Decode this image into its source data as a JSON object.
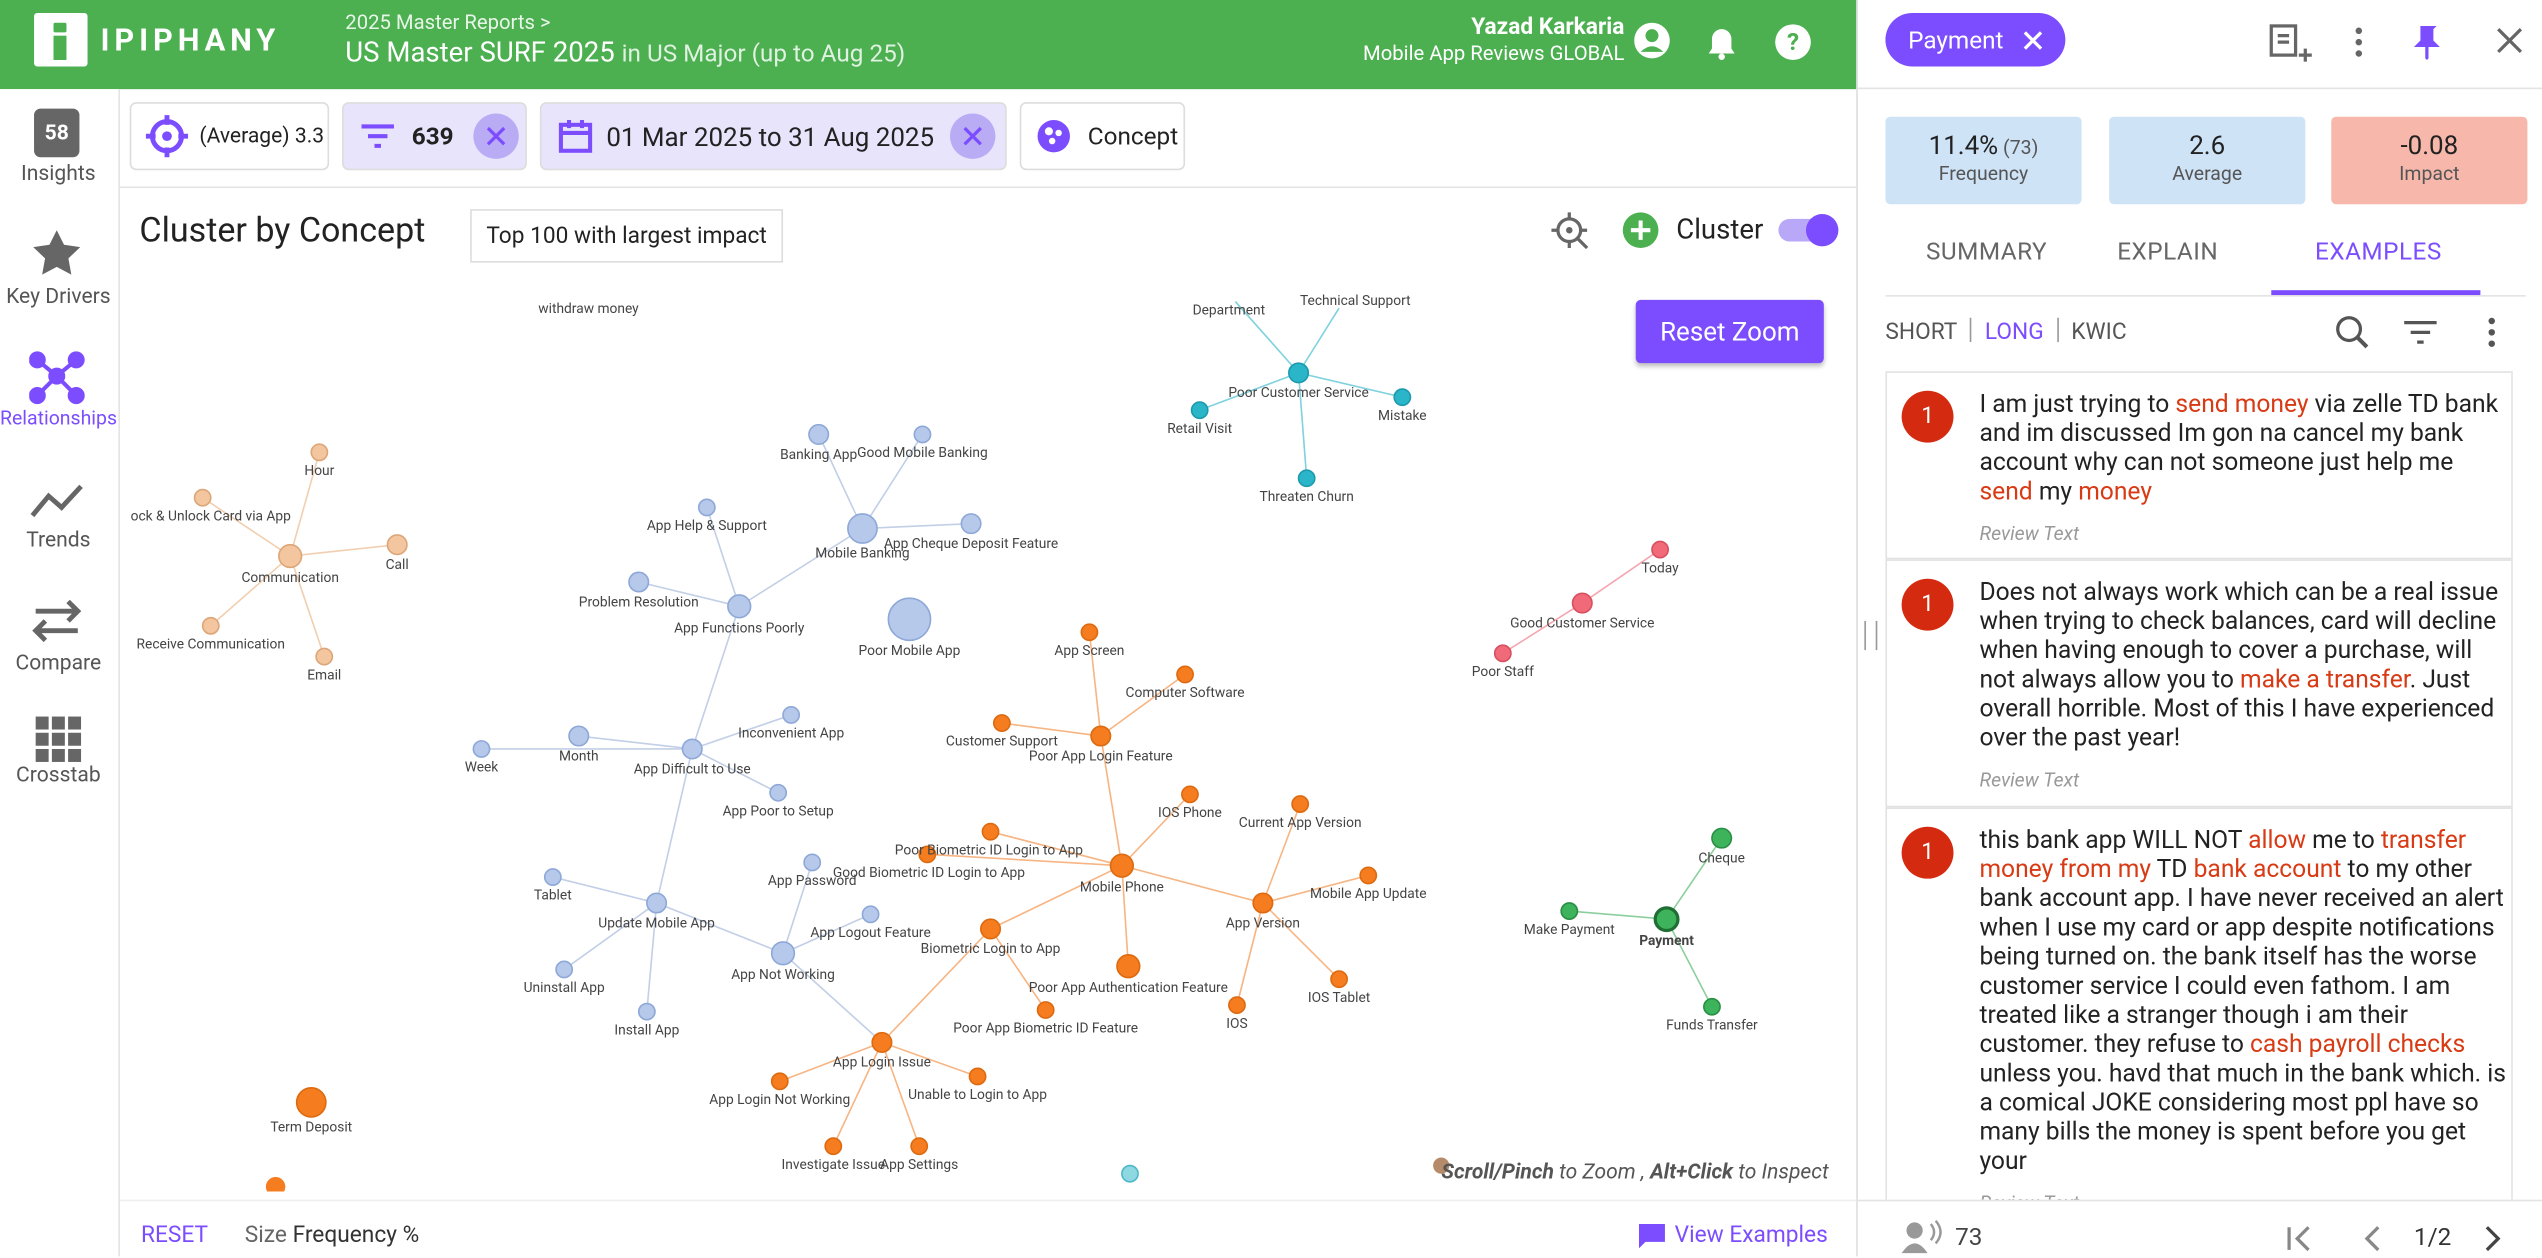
{
  "header": {
    "logo": "IPIPHANY",
    "breadcrumb": "2025 Master Reports  >",
    "title": "US Master SURF 2025",
    "scope": "in US Major (up to Aug 25)",
    "user": "Yazad Karkaria",
    "project": "Mobile App Reviews GLOBAL"
  },
  "sidebar": {
    "badge": "58",
    "items": [
      "Insights",
      "Key Drivers",
      "Relationships",
      "Trends",
      "Compare",
      "Crosstab"
    ],
    "active": 2
  },
  "filters": {
    "average": "(Average) 3.3",
    "count": "639",
    "dates": "01 Mar 2025 to 31 Aug 2025",
    "group": "Concept"
  },
  "panel": {
    "title": "Cluster by Concept",
    "selector": "Top 100 with largest impact",
    "cluster_label": "Cluster",
    "reset_zoom": "Reset Zoom",
    "hint": [
      {
        "text": "Scroll/Pinch",
        "bold": true
      },
      {
        "text": " to Zoom , ",
        "bold": false
      },
      {
        "text": "Alt+Click",
        "bold": true
      },
      {
        "text": " to Inspect",
        "bold": false
      }
    ],
    "reset": "RESET",
    "size_label": "Size",
    "size_value": "Frequency %",
    "view_examples": "View Examples"
  },
  "graph": {
    "nodes": [
      {
        "label": "withdraw money"
      },
      {
        "label": "Hour"
      },
      {
        "label": "ock & Unlock Card via App"
      },
      {
        "label": "Communication"
      },
      {
        "label": "Call"
      },
      {
        "label": "Receive Communication"
      },
      {
        "label": "Email"
      },
      {
        "label": "Banking App"
      },
      {
        "label": "Good Mobile Banking"
      },
      {
        "label": "App Help & Support"
      },
      {
        "label": "Mobile Banking"
      },
      {
        "label": "App Cheque Deposit Feature"
      },
      {
        "label": "Problem Resolution"
      },
      {
        "label": "App Functions Poorly"
      },
      {
        "label": "Poor Mobile App"
      },
      {
        "label": "Inconvenient App"
      },
      {
        "label": "Week"
      },
      {
        "label": "Month"
      },
      {
        "label": "App Difficult to Use"
      },
      {
        "label": "App Poor to Setup"
      },
      {
        "label": "App Password"
      },
      {
        "label": "Tablet"
      },
      {
        "label": "Update Mobile App"
      },
      {
        "label": "App Logout Feature"
      },
      {
        "label": "App Not Working"
      },
      {
        "label": "Uninstall App"
      },
      {
        "label": "Install App"
      },
      {
        "label": "Department"
      },
      {
        "label": "Technical Support"
      },
      {
        "label": "Poor Customer Service"
      },
      {
        "label": "Retail Visit"
      },
      {
        "label": "Mistake"
      },
      {
        "label": "Threaten Churn"
      },
      {
        "label": "App Screen"
      },
      {
        "label": "Computer Software"
      },
      {
        "label": "Customer Support"
      },
      {
        "label": "Poor App Login Feature"
      },
      {
        "label": "IOS Phone"
      },
      {
        "label": "Current App Version"
      },
      {
        "label": "Poor Biometric ID Login to App"
      },
      {
        "label": "Good Biometric ID Login to App"
      },
      {
        "label": "Mobile Phone"
      },
      {
        "label": "Mobile App Update"
      },
      {
        "label": "App Version"
      },
      {
        "label": "Biometric Login to App"
      },
      {
        "label": "Poor App Authentication Feature"
      },
      {
        "label": "IOS Tablet"
      },
      {
        "label": "IOS"
      },
      {
        "label": "Poor App Biometric ID Feature"
      },
      {
        "label": "App Login Issue"
      },
      {
        "label": "App Login Not Working"
      },
      {
        "label": "Unable to Login to App"
      },
      {
        "label": "Investigate Issue"
      },
      {
        "label": "App Settings"
      },
      {
        "label": "Term Deposit"
      },
      {
        "label": "Today"
      },
      {
        "label": "Good Customer Service"
      },
      {
        "label": "Poor Staff"
      },
      {
        "label": "Cheque"
      },
      {
        "label": "Payment"
      },
      {
        "label": "Make Payment"
      },
      {
        "label": "Funds Transfer"
      }
    ],
    "selected": 59
  },
  "detail": {
    "concept": "Payment",
    "stats": [
      {
        "value": "11.4%",
        "extra": "(73)",
        "label": "Frequency"
      },
      {
        "value": "2.6",
        "label": "Average"
      },
      {
        "value": "-0.08",
        "label": "Impact"
      }
    ],
    "tabs": [
      "SUMMARY",
      "EXPLAIN",
      "EXAMPLES"
    ],
    "active_tab": 2,
    "modes": [
      "SHORT",
      "LONG",
      "KWIC"
    ],
    "active_mode": 1,
    "examples": [
      {
        "rank": "1",
        "source": "Review Text",
        "segments": [
          {
            "text": "I am just trying to ",
            "hl": false
          },
          {
            "text": "send money",
            "hl": true
          },
          {
            "text": " via zelle TD bank and im discussed Im gon na cancel my bank account why can not someone just help me ",
            "hl": false
          },
          {
            "text": "send",
            "hl": true
          },
          {
            "text": " my ",
            "hl": false
          },
          {
            "text": "money",
            "hl": true
          }
        ]
      },
      {
        "rank": "1",
        "source": "Review Text",
        "segments": [
          {
            "text": "Does not always work which can be a real issue when trying to check balances, card will decline when having enough to cover a purchase, will not always allow you to ",
            "hl": false
          },
          {
            "text": "make a transfer",
            "hl": true
          },
          {
            "text": ". Just overall horrible. Most of this I have experienced over the past year!",
            "hl": false
          }
        ]
      },
      {
        "rank": "1",
        "source": "Review Text",
        "segments": [
          {
            "text": "this bank app WILL NOT ",
            "hl": false
          },
          {
            "text": "allow",
            "hl": true
          },
          {
            "text": " me to ",
            "hl": false
          },
          {
            "text": "transfer money from my",
            "hl": true
          },
          {
            "text": " TD ",
            "hl": false
          },
          {
            "text": "bank account",
            "hl": true
          },
          {
            "text": " to my other bank account app. I have never received an alert when I use my card or app despite notifications being turned on. the bank itself has the worse customer service I could even fathom. I am treated like a stranger though i am their customer. they refuse to ",
            "hl": false
          },
          {
            "text": "cash payroll checks",
            "hl": true
          },
          {
            "text": " unless you. havd that much in the bank which. is a comical JOKE considering most ppl have so many bills the money is spent before you get your",
            "hl": false
          }
        ]
      }
    ],
    "count": "73",
    "page": "1/2"
  }
}
